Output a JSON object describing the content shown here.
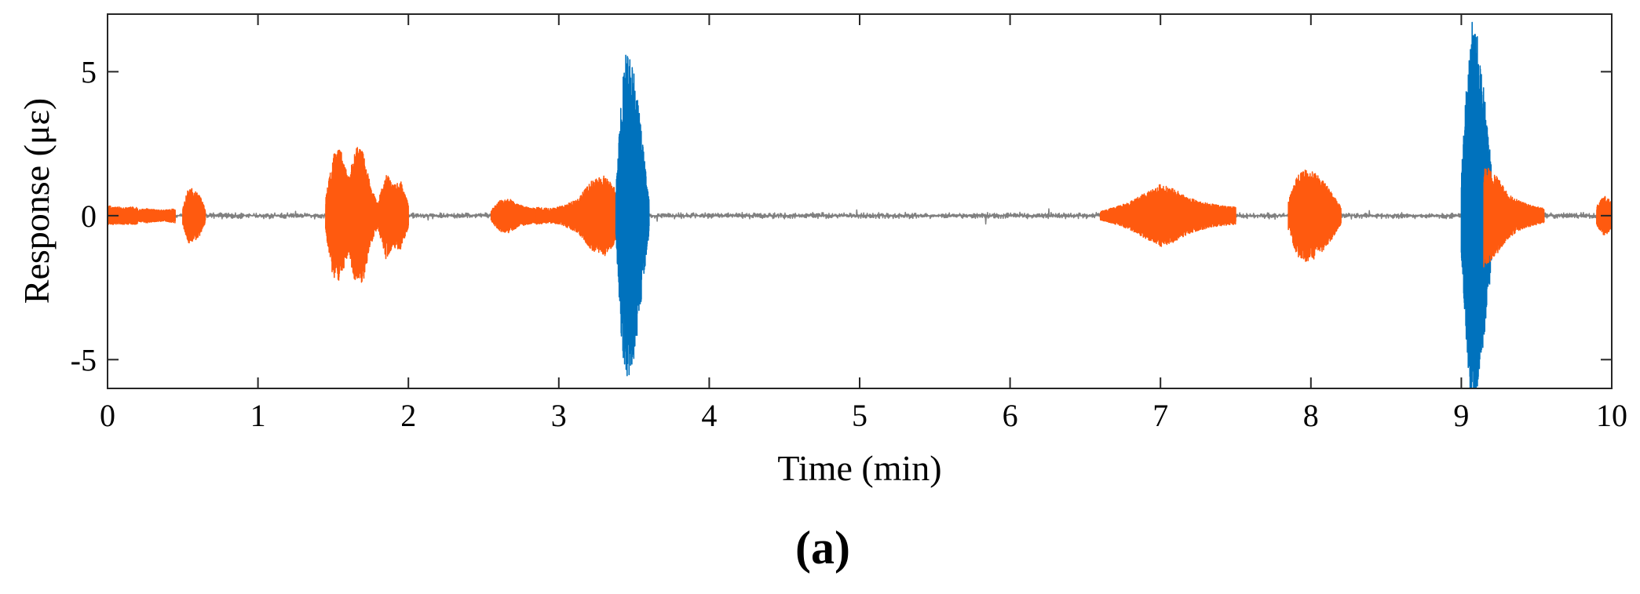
{
  "chart_data": {
    "type": "line",
    "title": "",
    "xlabel": "Time (min)",
    "ylabel": "Response (με)",
    "xlim": [
      0,
      10
    ],
    "ylim": [
      -6,
      7
    ],
    "xticks": [
      "0",
      "1",
      "2",
      "3",
      "4",
      "5",
      "6",
      "7",
      "8",
      "9",
      "10"
    ],
    "yticks": [
      "-5",
      "0",
      "5"
    ],
    "grid": false,
    "legend": "none",
    "panel_label": "(a)",
    "colors": {
      "baseline": "#808080",
      "moderate": "#FF5A0F",
      "strong": "#0072BD"
    },
    "baseline": {
      "color_key": "baseline",
      "x_range": [
        0,
        10
      ],
      "amplitude": 0.12
    },
    "segments": [
      {
        "color_key": "moderate",
        "start": 0.0,
        "end": 0.2,
        "envelope": [
          0.35,
          0.3,
          0.3,
          0.3,
          0.3
        ]
      },
      {
        "color_key": "moderate",
        "start": 0.2,
        "end": 0.45,
        "envelope": [
          0.2,
          0.25,
          0.2,
          0.2,
          0.25
        ]
      },
      {
        "color_key": "moderate",
        "start": 0.5,
        "end": 0.65,
        "envelope": [
          0.3,
          1.0,
          0.9,
          0.7,
          0.25
        ]
      },
      {
        "color_key": "moderate",
        "start": 1.45,
        "end": 1.8,
        "envelope": [
          0.6,
          2.2,
          2.3,
          1.3,
          2.4,
          2.3,
          1.0,
          0.4
        ]
      },
      {
        "color_key": "moderate",
        "start": 1.8,
        "end": 2.0,
        "envelope": [
          0.5,
          1.5,
          1.1,
          1.2,
          0.4
        ]
      },
      {
        "color_key": "moderate",
        "start": 2.55,
        "end": 2.85,
        "envelope": [
          0.2,
          0.55,
          0.6,
          0.4,
          0.3,
          0.25
        ]
      },
      {
        "color_key": "moderate",
        "start": 2.85,
        "end": 3.4,
        "envelope": [
          0.3,
          0.25,
          0.35,
          0.6,
          1.2,
          1.4,
          0.8
        ]
      },
      {
        "color_key": "strong",
        "start": 3.38,
        "end": 3.6,
        "envelope": [
          1.0,
          4.0,
          5.8,
          5.5,
          4.8,
          3.5,
          2.0,
          0.6
        ]
      },
      {
        "color_key": "moderate",
        "start": 6.6,
        "end": 7.5,
        "envelope": [
          0.15,
          0.3,
          0.5,
          0.8,
          1.1,
          0.9,
          0.6,
          0.45,
          0.35,
          0.3
        ]
      },
      {
        "color_key": "moderate",
        "start": 7.85,
        "end": 8.2,
        "envelope": [
          0.5,
          1.4,
          1.6,
          1.5,
          1.2,
          0.8,
          0.3
        ]
      },
      {
        "color_key": "strong",
        "start": 9.0,
        "end": 9.2,
        "envelope": [
          1.5,
          4.5,
          6.8,
          6.5,
          5.2,
          3.5,
          1.8
        ]
      },
      {
        "color_key": "moderate",
        "start": 9.15,
        "end": 9.55,
        "envelope": [
          1.8,
          1.4,
          0.8,
          0.5,
          0.35,
          0.25
        ]
      },
      {
        "color_key": "moderate",
        "start": 9.9,
        "end": 10.0,
        "envelope": [
          0.35,
          0.7,
          0.5
        ]
      }
    ]
  }
}
